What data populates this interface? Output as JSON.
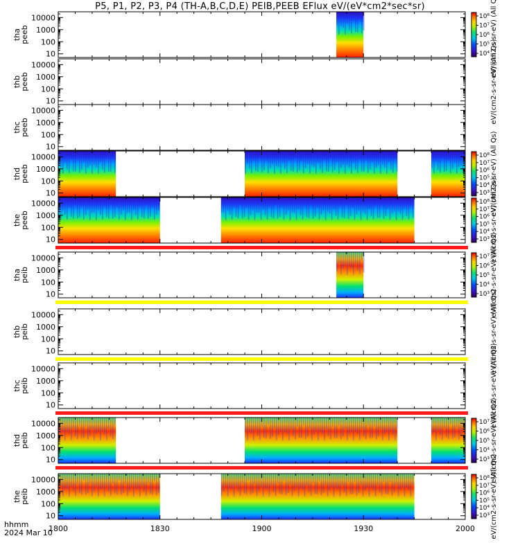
{
  "title": "P5, P1, P2, P3, P4 (TH-A,B,C,D,E) PEIB,PEEB EFlux eV/(eV*cm2*sec*sr)",
  "footer": {
    "time_label": "hhmm",
    "date_label": "2024 Mar 10"
  },
  "colors": {
    "status_red": "#ff1a1a",
    "status_yellow": "#ffff00"
  },
  "chart_data": {
    "type": "heatmap",
    "x_ticks": [
      "1800",
      "1830",
      "1900",
      "1930",
      "2000"
    ],
    "x_range_minutes": [
      0,
      120
    ],
    "y_scale": "log",
    "y_ticks": [
      "10",
      "100",
      "1000",
      "10000"
    ],
    "colormap": "rainbow (violet to red)",
    "panels": [
      {
        "probe": "tha",
        "product": "peeb",
        "ylabel": [
          "tha",
          "peeb"
        ],
        "data_intervals": [
          [
            82,
            90
          ]
        ],
        "colorbar_ticks": [
          "10^8",
          "10^7",
          "10^6",
          "10^5",
          "10^4"
        ],
        "colorbar_label": "eV/(cm2-s-sr-eV) (All Qs)",
        "status_bar": null
      },
      {
        "probe": "thb",
        "product": "peeb",
        "ylabel": [
          "thb",
          "peeb"
        ],
        "data_intervals": [],
        "colorbar_ticks": [],
        "colorbar_label": "eV/(cm2-s-sr-eV) (All Qs)",
        "status_bar": null
      },
      {
        "probe": "thc",
        "product": "peeb",
        "ylabel": [
          "thc",
          "peeb"
        ],
        "data_intervals": [],
        "colorbar_ticks": [],
        "colorbar_label": "",
        "status_bar": null
      },
      {
        "probe": "thd",
        "product": "peeb",
        "ylabel": [
          "thd",
          "peeb"
        ],
        "data_intervals": [
          [
            0,
            17
          ],
          [
            55,
            100
          ],
          [
            110,
            120
          ]
        ],
        "colorbar_ticks": [
          "10^8",
          "10^7",
          "10^6",
          "10^5",
          "10^4",
          "10^3"
        ],
        "colorbar_label": "eV/(cm2-s-sr-eV) (All Qs)",
        "status_bar": null
      },
      {
        "probe": "the",
        "product": "peeb",
        "ylabel": [
          "the",
          "peeb"
        ],
        "data_intervals": [
          [
            0,
            30
          ],
          [
            48,
            105
          ]
        ],
        "colorbar_ticks": [
          "10^8",
          "10^7",
          "10^6",
          "10^5",
          "10^4",
          "10^3"
        ],
        "colorbar_label": "eV/(cm2-s-sr-eV) (All Qs)",
        "status_bar": "red"
      },
      {
        "probe": "tha",
        "product": "peib",
        "ylabel": [
          "tha",
          "peib"
        ],
        "data_intervals": [
          [
            82,
            90
          ]
        ],
        "colorbar_ticks": [
          "10^7",
          "10^6",
          "10^5",
          "10^4",
          "10^3"
        ],
        "colorbar_label": "eV/(cm2-s-sr-eV) (All Qs)",
        "status_bar": "yellow"
      },
      {
        "probe": "thb",
        "product": "peib",
        "ylabel": [
          "thb",
          "peib"
        ],
        "data_intervals": [],
        "colorbar_ticks": [],
        "colorbar_label": "eV/(cm2-s-sr-eV) (All Qs)",
        "status_bar": "yellow"
      },
      {
        "probe": "thc",
        "product": "peib",
        "ylabel": [
          "thc",
          "peib"
        ],
        "data_intervals": [],
        "colorbar_ticks": [],
        "colorbar_label": "eV/(cm2-s-sr-eV) (All Qs)",
        "status_bar": "red"
      },
      {
        "probe": "thd",
        "product": "peib",
        "ylabel": [
          "thd",
          "peib"
        ],
        "data_intervals": [
          [
            0,
            17
          ],
          [
            55,
            100
          ],
          [
            110,
            120
          ]
        ],
        "colorbar_ticks": [
          "10^7",
          "10^6",
          "10^5",
          "10^4",
          "10^3"
        ],
        "colorbar_label": "eV/(cm2-s-sr-eV) (All Qs)",
        "status_bar": "red"
      },
      {
        "probe": "the",
        "product": "peib",
        "ylabel": [
          "the",
          "peib"
        ],
        "data_intervals": [
          [
            0,
            30
          ],
          [
            48,
            105
          ]
        ],
        "colorbar_ticks": [
          "10^8",
          "10^7",
          "10^6",
          "10^5",
          "10^4",
          "10^3"
        ],
        "colorbar_label": "eV/(cm2-s-sr-eV) (All Qs)",
        "status_bar": null
      }
    ]
  }
}
